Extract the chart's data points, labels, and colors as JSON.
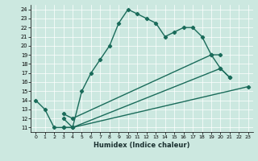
{
  "xlabel": "Humidex (Indice chaleur)",
  "ylabel": "",
  "xlim": [
    -0.5,
    23.5
  ],
  "ylim": [
    10.5,
    24.5
  ],
  "yticks": [
    11,
    12,
    13,
    14,
    15,
    16,
    17,
    18,
    19,
    20,
    21,
    22,
    23,
    24
  ],
  "xticks": [
    0,
    1,
    2,
    3,
    4,
    5,
    6,
    7,
    8,
    9,
    10,
    11,
    12,
    13,
    14,
    15,
    16,
    17,
    18,
    19,
    20,
    21,
    22,
    23
  ],
  "bg_color": "#cce8e0",
  "line_color": "#1a6b5a",
  "line_width": 1.0,
  "marker": "D",
  "marker_size": 2.2,
  "curves": [
    {
      "x": [
        0,
        1,
        2,
        3,
        4,
        5,
        6,
        7,
        8,
        9,
        10,
        11,
        12,
        13,
        14,
        15,
        16,
        17,
        18,
        19,
        20
      ],
      "y": [
        14,
        13,
        11,
        11,
        11,
        15,
        17,
        18.5,
        20,
        22.5,
        24,
        23.5,
        23,
        22.5,
        21,
        21.5,
        22,
        22,
        21,
        19,
        19
      ]
    },
    {
      "x": [
        3,
        4,
        23
      ],
      "y": [
        11,
        11,
        15.5
      ]
    },
    {
      "x": [
        3,
        4,
        20,
        21
      ],
      "y": [
        12,
        11,
        17.5,
        16.5
      ]
    },
    {
      "x": [
        3,
        4,
        19,
        20,
        21
      ],
      "y": [
        12.5,
        12,
        19,
        17.5,
        16.5
      ]
    }
  ]
}
